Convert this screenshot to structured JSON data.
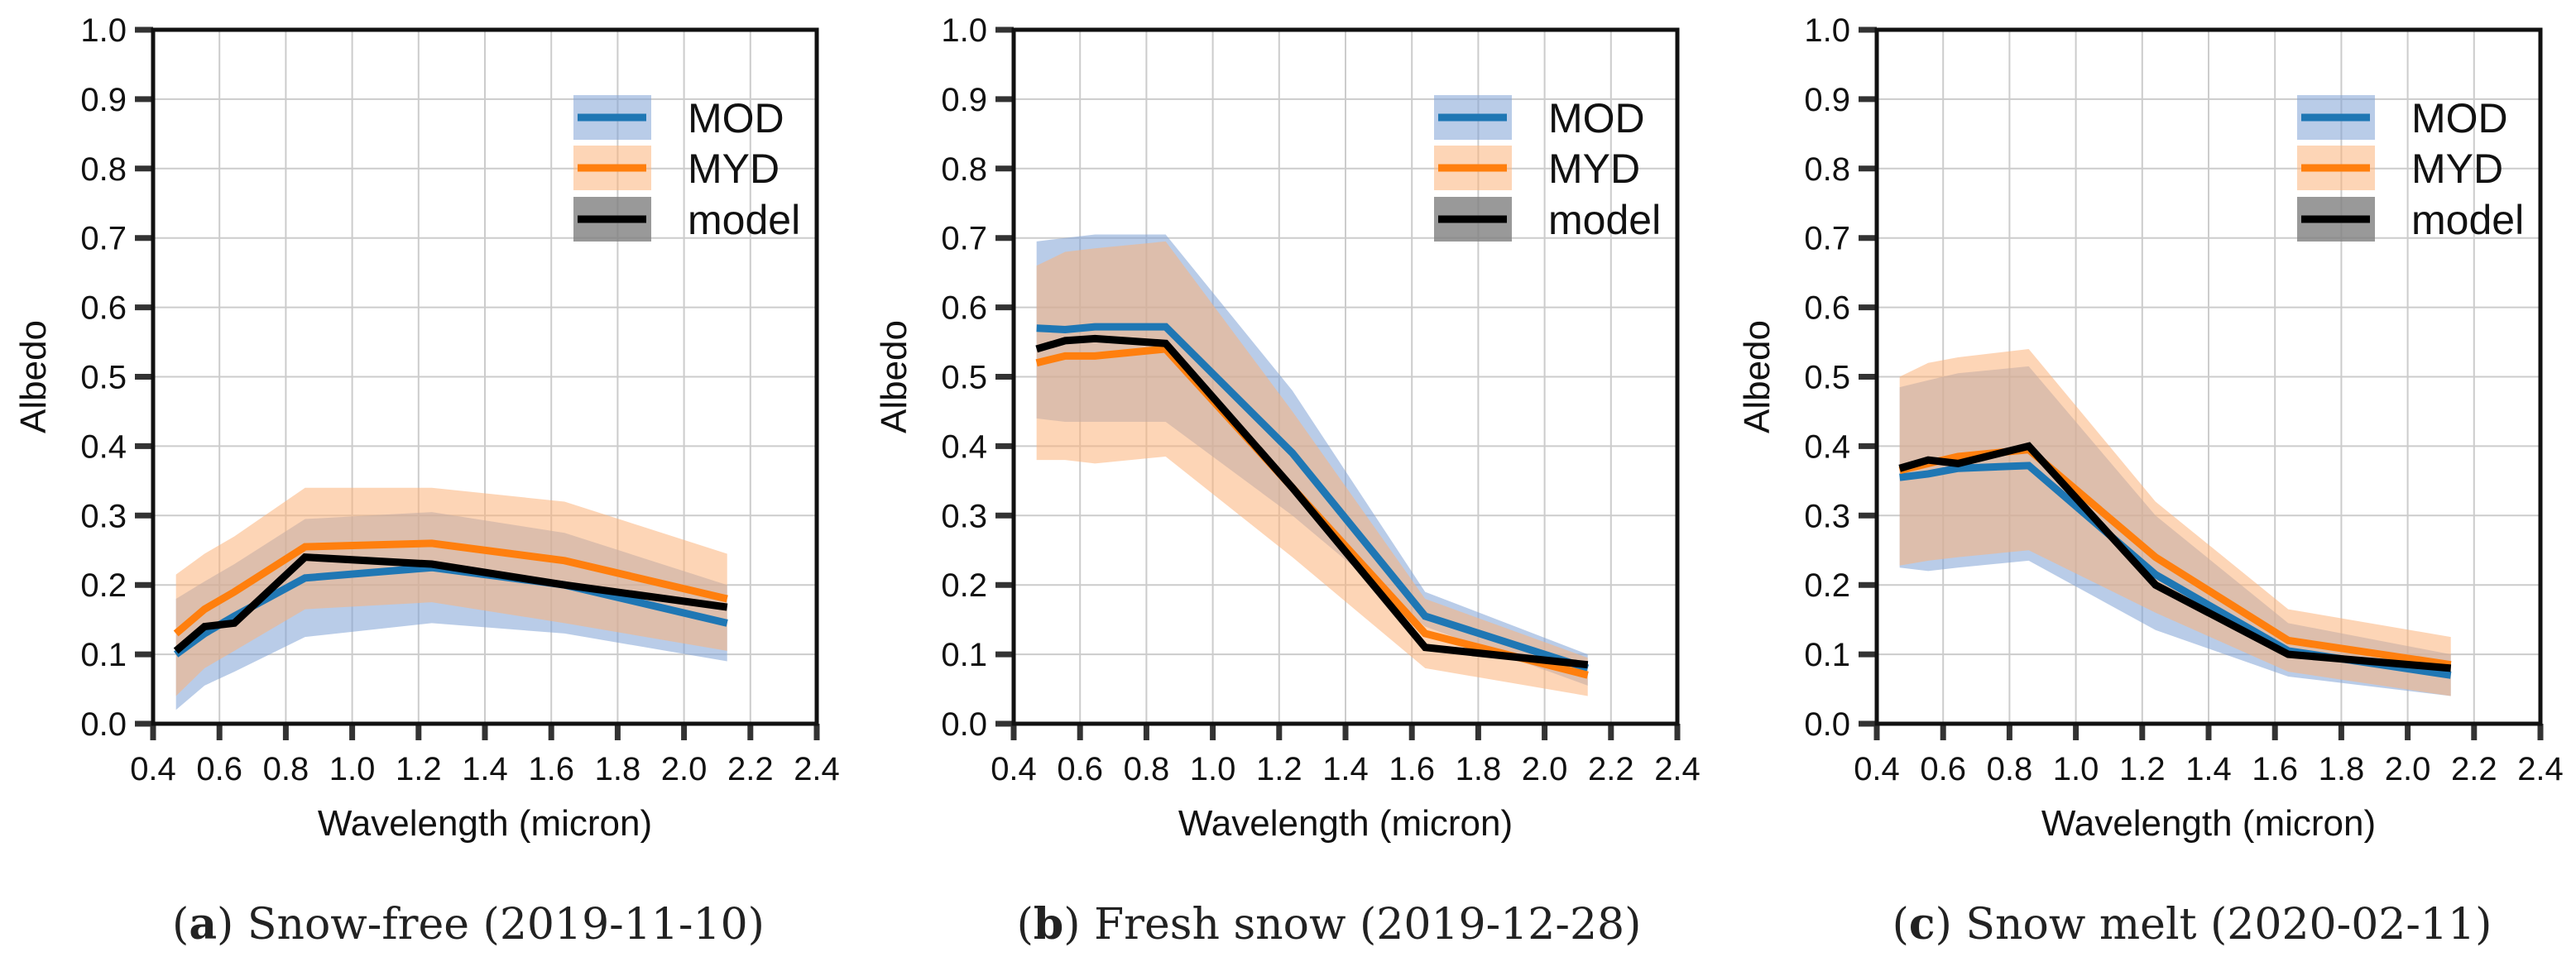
{
  "chart_data": [
    {
      "type": "line",
      "panel_label": "a",
      "title": "Snow-free (2019-11-10)",
      "xlabel": "Wavelength (micron)",
      "ylabel": "Albedo",
      "xlim": [
        0.4,
        2.4
      ],
      "ylim": [
        0.0,
        1.0
      ],
      "xticks": [
        "0.4",
        "0.6",
        "0.8",
        "1.0",
        "1.2",
        "1.4",
        "1.6",
        "1.8",
        "2.0",
        "2.2",
        "2.4"
      ],
      "yticks": [
        "0.0",
        "0.1",
        "0.2",
        "0.3",
        "0.4",
        "0.5",
        "0.6",
        "0.7",
        "0.8",
        "0.9",
        "1.0"
      ],
      "grid": true,
      "legend_position": "top-right",
      "x": [
        0.469,
        0.555,
        0.645,
        0.858,
        1.24,
        1.64,
        2.13
      ],
      "series": [
        {
          "name": "MOD",
          "values": [
            0.1,
            0.13,
            0.155,
            0.21,
            0.225,
            0.2,
            0.145
          ],
          "lower": [
            0.02,
            0.055,
            0.075,
            0.125,
            0.145,
            0.13,
            0.09
          ],
          "upper": [
            0.18,
            0.205,
            0.23,
            0.295,
            0.305,
            0.275,
            0.2
          ]
        },
        {
          "name": "MYD",
          "values": [
            0.13,
            0.165,
            0.19,
            0.255,
            0.26,
            0.235,
            0.18
          ],
          "lower": [
            0.04,
            0.08,
            0.105,
            0.165,
            0.175,
            0.145,
            0.105
          ],
          "upper": [
            0.215,
            0.245,
            0.27,
            0.34,
            0.34,
            0.32,
            0.245
          ]
        },
        {
          "name": "model",
          "values": [
            0.105,
            0.14,
            0.145,
            0.24,
            0.23,
            0.2,
            0.168
          ]
        }
      ]
    },
    {
      "type": "line",
      "panel_label": "b",
      "title": "Fresh snow (2019-12-28)",
      "xlabel": "Wavelength (micron)",
      "ylabel": "Albedo",
      "xlim": [
        0.4,
        2.4
      ],
      "ylim": [
        0.0,
        1.0
      ],
      "xticks": [
        "0.4",
        "0.6",
        "0.8",
        "1.0",
        "1.2",
        "1.4",
        "1.6",
        "1.8",
        "2.0",
        "2.2",
        "2.4"
      ],
      "yticks": [
        "0.0",
        "0.1",
        "0.2",
        "0.3",
        "0.4",
        "0.5",
        "0.6",
        "0.7",
        "0.8",
        "0.9",
        "1.0"
      ],
      "grid": true,
      "legend_position": "top-right",
      "x": [
        0.469,
        0.555,
        0.645,
        0.858,
        1.24,
        1.64,
        2.13
      ],
      "series": [
        {
          "name": "MOD",
          "values": [
            0.57,
            0.568,
            0.572,
            0.572,
            0.39,
            0.155,
            0.08
          ],
          "lower": [
            0.44,
            0.435,
            0.435,
            0.435,
            0.3,
            0.14,
            0.055
          ],
          "upper": [
            0.695,
            0.7,
            0.705,
            0.705,
            0.48,
            0.19,
            0.1
          ]
        },
        {
          "name": "MYD",
          "values": [
            0.52,
            0.53,
            0.53,
            0.54,
            0.34,
            0.13,
            0.07
          ],
          "lower": [
            0.38,
            0.38,
            0.375,
            0.385,
            0.24,
            0.08,
            0.04
          ],
          "upper": [
            0.66,
            0.68,
            0.685,
            0.695,
            0.45,
            0.18,
            0.095
          ]
        },
        {
          "name": "model",
          "values": [
            0.54,
            0.552,
            0.555,
            0.548,
            0.34,
            0.11,
            0.085
          ]
        }
      ]
    },
    {
      "type": "line",
      "panel_label": "c",
      "title": "Snow melt (2020-02-11)",
      "xlabel": "Wavelength (micron)",
      "ylabel": "Albedo",
      "xlim": [
        0.4,
        2.4
      ],
      "ylim": [
        0.0,
        1.0
      ],
      "xticks": [
        "0.4",
        "0.6",
        "0.8",
        "1.0",
        "1.2",
        "1.4",
        "1.6",
        "1.8",
        "2.0",
        "2.2",
        "2.4"
      ],
      "yticks": [
        "0.0",
        "0.1",
        "0.2",
        "0.3",
        "0.4",
        "0.5",
        "0.6",
        "0.7",
        "0.8",
        "0.9",
        "1.0"
      ],
      "grid": true,
      "legend_position": "top-right",
      "x": [
        0.469,
        0.555,
        0.645,
        0.858,
        1.24,
        1.64,
        2.13
      ],
      "series": [
        {
          "name": "MOD",
          "values": [
            0.355,
            0.36,
            0.368,
            0.372,
            0.215,
            0.105,
            0.07
          ],
          "lower": [
            0.225,
            0.22,
            0.225,
            0.235,
            0.135,
            0.068,
            0.04
          ],
          "upper": [
            0.485,
            0.495,
            0.505,
            0.515,
            0.3,
            0.145,
            0.1
          ]
        },
        {
          "name": "MYD",
          "values": [
            0.365,
            0.375,
            0.385,
            0.395,
            0.24,
            0.12,
            0.085
          ],
          "lower": [
            0.228,
            0.235,
            0.24,
            0.25,
            0.16,
            0.075,
            0.04
          ],
          "upper": [
            0.5,
            0.52,
            0.528,
            0.54,
            0.32,
            0.165,
            0.125
          ]
        },
        {
          "name": "model",
          "values": [
            0.368,
            0.38,
            0.375,
            0.4,
            0.2,
            0.1,
            0.08
          ]
        }
      ]
    }
  ],
  "colors": {
    "MOD": "#1f77b4",
    "MOD_band": "#7fa3d6",
    "MYD": "#ff7f0e",
    "MYD_band": "#fbb37a",
    "model": "#000000",
    "model_band": "#808080",
    "grid": "#cccccc",
    "axis": "#111111"
  }
}
